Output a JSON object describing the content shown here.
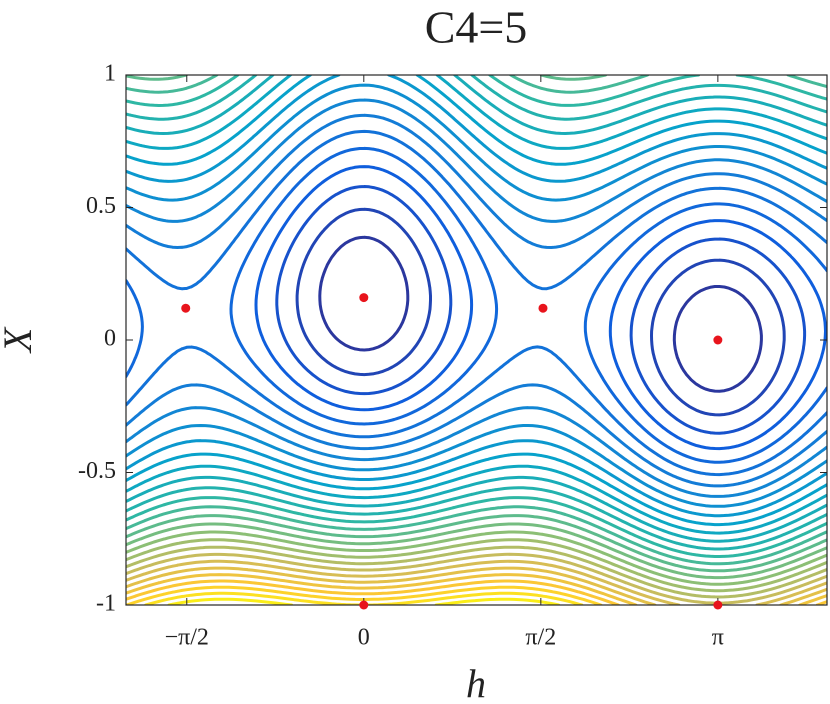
{
  "chart_data": {
    "type": "scatter",
    "title": "C4=5",
    "x_label": "h",
    "y_label": "X",
    "x": [
      0,
      3.1416,
      -1.58,
      1.59,
      0,
      3.1416
    ],
    "values": [
      0.16,
      0,
      0.12,
      0.12,
      -1,
      -1
    ],
    "color": "#e8141c",
    "xlim": [
      -2.11,
      4.11
    ],
    "ylim": [
      -1,
      1
    ],
    "xticks": [
      {
        "value": -1.5708,
        "label": "−π/2"
      },
      0,
      {
        "value": 1.5708,
        "label": "π/2"
      },
      {
        "value": 3.1416,
        "label": "π"
      }
    ],
    "yticks": [
      -1,
      -0.5,
      0,
      0.5,
      1
    ]
  }
}
